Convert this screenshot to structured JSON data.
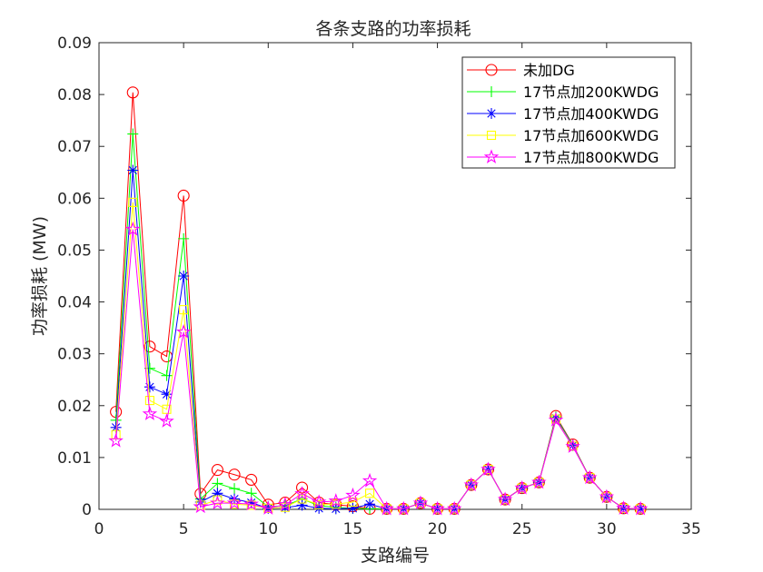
{
  "chart_data": {
    "type": "line",
    "title": "各条支路的功率损耗",
    "xlabel": "支路编号",
    "ylabel": "功率损耗 (MW)",
    "xlim": [
      0,
      35
    ],
    "ylim": [
      0,
      0.09
    ],
    "xticks": [
      "0",
      "5",
      "10",
      "15",
      "20",
      "25",
      "30",
      "35"
    ],
    "yticks": [
      "0",
      "0.01",
      "0.02",
      "0.03",
      "0.04",
      "0.05",
      "0.06",
      "0.07",
      "0.08",
      "0.09"
    ],
    "grid": false,
    "legend_position": "top-right",
    "x": [
      1,
      2,
      3,
      4,
      5,
      6,
      7,
      8,
      9,
      10,
      11,
      12,
      13,
      14,
      15,
      16,
      17,
      18,
      19,
      20,
      21,
      22,
      23,
      24,
      25,
      26,
      27,
      28,
      29,
      30,
      31,
      32
    ],
    "series": [
      {
        "name": "未加DG",
        "color": "#ff0000",
        "marker": "circle",
        "values": [
          0.0188,
          0.0804,
          0.0314,
          0.0295,
          0.0605,
          0.003,
          0.0076,
          0.0067,
          0.0057,
          0.0009,
          0.0013,
          0.0042,
          0.0013,
          0.0009,
          0.0006,
          0.0001,
          0.0001,
          0.0001,
          0.0012,
          0.0001,
          0.0001,
          0.0047,
          0.0077,
          0.0019,
          0.0041,
          0.0052,
          0.018,
          0.0125,
          0.0061,
          0.0024,
          0.0002,
          0.0001
        ]
      },
      {
        "name": "17节点加200KWDG",
        "color": "#00ff00",
        "marker": "plus",
        "values": [
          0.0172,
          0.0724,
          0.0272,
          0.0258,
          0.0522,
          0.002,
          0.005,
          0.004,
          0.0031,
          0.0005,
          0.0007,
          0.002,
          0.0007,
          0.0004,
          0.0002,
          0.0001,
          0.0001,
          0.0001,
          0.0012,
          0.0001,
          0.0001,
          0.0047,
          0.0077,
          0.0019,
          0.0041,
          0.0052,
          0.0178,
          0.0124,
          0.0061,
          0.0024,
          0.0002,
          0.0001
        ]
      },
      {
        "name": "17节点加400KWDG",
        "color": "#0000ff",
        "marker": "asterisk",
        "values": [
          0.0158,
          0.0654,
          0.0236,
          0.0222,
          0.045,
          0.0014,
          0.0031,
          0.002,
          0.0013,
          0.0002,
          0.0003,
          0.0008,
          0.0002,
          0.0001,
          0.0002,
          0.001,
          0.0001,
          0.0001,
          0.0012,
          0.0001,
          0.0001,
          0.0047,
          0.0077,
          0.0019,
          0.0041,
          0.0052,
          0.0176,
          0.0123,
          0.0061,
          0.0024,
          0.0002,
          0.0001
        ]
      },
      {
        "name": "17节点加600KWDG",
        "color": "#ffff00",
        "marker": "square",
        "values": [
          0.0144,
          0.0592,
          0.021,
          0.0193,
          0.0385,
          0.0008,
          0.0018,
          0.001,
          0.0008,
          0.0002,
          0.0004,
          0.002,
          0.0009,
          0.001,
          0.0014,
          0.0031,
          0.0001,
          0.0001,
          0.0012,
          0.0001,
          0.0001,
          0.0047,
          0.0077,
          0.0019,
          0.0041,
          0.0052,
          0.0174,
          0.0122,
          0.0061,
          0.0024,
          0.0002,
          0.0001
        ]
      },
      {
        "name": "17节点加800KWDG",
        "color": "#ff00ff",
        "marker": "star",
        "values": [
          0.0132,
          0.054,
          0.0184,
          0.017,
          0.0342,
          0.0005,
          0.0012,
          0.0012,
          0.001,
          0.0002,
          0.0009,
          0.003,
          0.0014,
          0.0016,
          0.0027,
          0.0055,
          0.0001,
          0.0001,
          0.0012,
          0.0001,
          0.0001,
          0.0047,
          0.0077,
          0.0019,
          0.0041,
          0.0052,
          0.0172,
          0.0121,
          0.0061,
          0.0024,
          0.0002,
          0.0001
        ]
      }
    ]
  }
}
